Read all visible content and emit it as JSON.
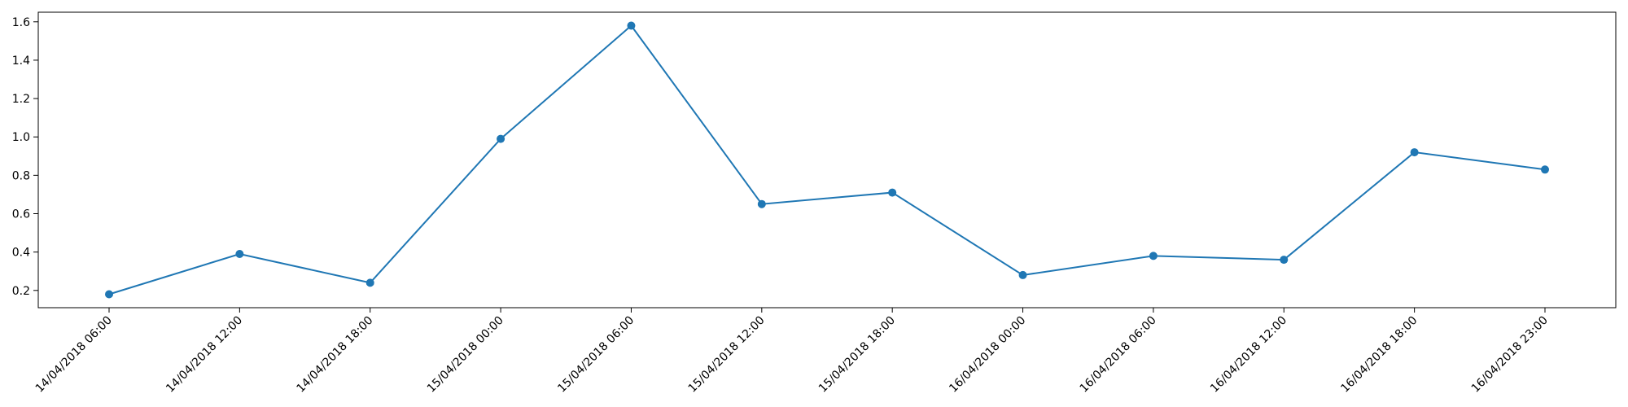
{
  "chart_data": {
    "type": "line",
    "title": "",
    "xlabel": "",
    "ylabel": "",
    "x": [
      "14/04/2018 06:00",
      "14/04/2018 12:00",
      "14/04/2018 18:00",
      "15/04/2018 00:00",
      "15/04/2018 06:00",
      "15/04/2018 12:00",
      "15/04/2018 18:00",
      "16/04/2018 00:00",
      "16/04/2018 06:00",
      "16/04/2018 12:00",
      "16/04/2018 18:00",
      "16/04/2018 23:00"
    ],
    "series": [
      {
        "values": [
          0.18,
          0.39,
          0.24,
          0.99,
          1.58,
          0.65,
          0.71,
          0.28,
          0.38,
          0.36,
          0.92,
          0.83
        ]
      }
    ],
    "yticks": [
      0.2,
      0.4,
      0.6,
      0.8,
      1.0,
      1.2,
      1.4,
      1.6
    ],
    "ylim": [
      0.11,
      1.65
    ],
    "grid": false,
    "legend": "none",
    "colors": {
      "line": "#1f77b4",
      "axes": "#000000",
      "background": "#ffffff"
    },
    "marker": "circle"
  }
}
